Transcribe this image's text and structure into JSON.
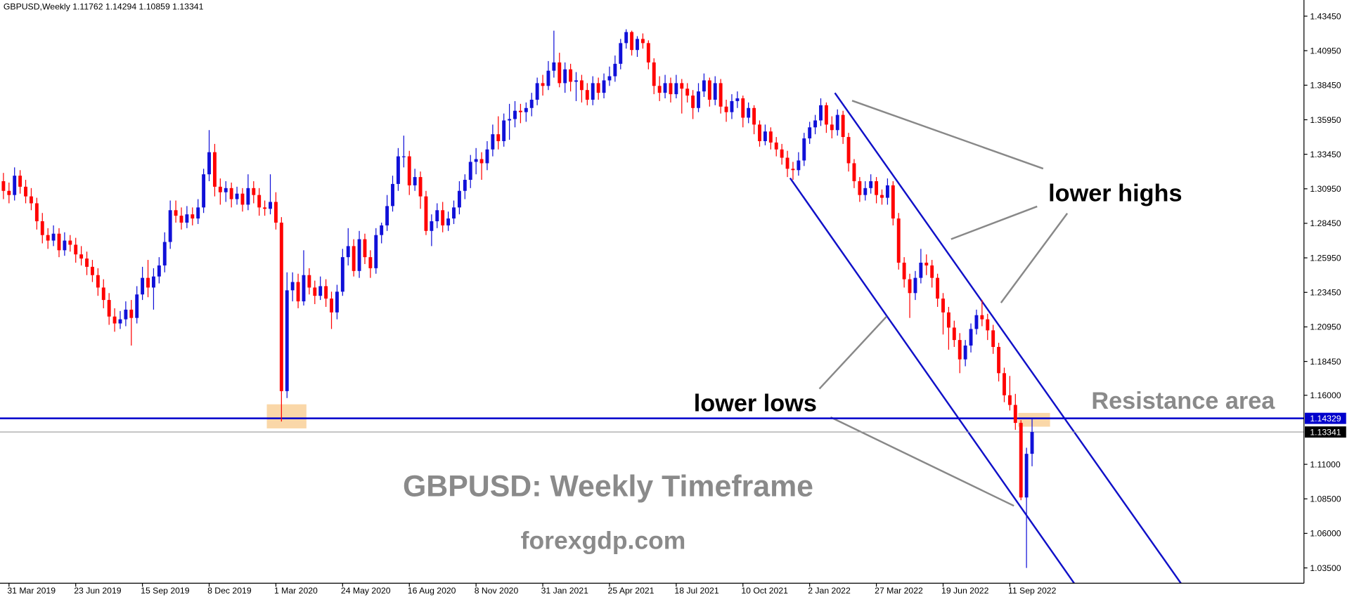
{
  "chart_data": {
    "type": "candlestick",
    "header": "GBPUSD,Weekly  1.11762 1.14294 1.10859 1.13341",
    "up_color": "#1010d8",
    "down_color": "#ff0000",
    "ylim": [
      1.0239,
      1.4462
    ],
    "yticks": [
      {
        "value": 1.4345,
        "label": "1.43450"
      },
      {
        "value": 1.4095,
        "label": "1.40950"
      },
      {
        "value": 1.3845,
        "label": "1.38450"
      },
      {
        "value": 1.3595,
        "label": "1.35950"
      },
      {
        "value": 1.3345,
        "label": "1.33450"
      },
      {
        "value": 1.3095,
        "label": "1.30950"
      },
      {
        "value": 1.2845,
        "label": "1.28450"
      },
      {
        "value": 1.2595,
        "label": "1.25950"
      },
      {
        "value": 1.2345,
        "label": "1.23450"
      },
      {
        "value": 1.2095,
        "label": "1.20950"
      },
      {
        "value": 1.1845,
        "label": "1.18450"
      },
      {
        "value": 1.16,
        "label": "1.16000"
      },
      {
        "value": 1.11,
        "label": "1.11000"
      },
      {
        "value": 1.085,
        "label": "1.08500"
      },
      {
        "value": 1.06,
        "label": "1.06000"
      },
      {
        "value": 1.035,
        "label": "1.03500"
      }
    ],
    "xticks": [
      {
        "value": 1,
        "label": "31 Mar 2019"
      },
      {
        "value": 13,
        "label": "23 Jun 2019"
      },
      {
        "value": 25,
        "label": "15 Sep 2019"
      },
      {
        "value": 37,
        "label": "8 Dec 2019"
      },
      {
        "value": 49,
        "label": "1 Mar 2020"
      },
      {
        "value": 61,
        "label": "24 May 2020"
      },
      {
        "value": 73,
        "label": "16 Aug 2020"
      },
      {
        "value": 85,
        "label": "8 Nov 2020"
      },
      {
        "value": 97,
        "label": "31 Jan 2021"
      },
      {
        "value": 109,
        "label": "25 Apr 2021"
      },
      {
        "value": 121,
        "label": "18 Jul 2021"
      },
      {
        "value": 133,
        "label": "10 Oct 2021"
      },
      {
        "value": 145,
        "label": "2 Jan 2022"
      },
      {
        "value": 157,
        "label": "27 Mar 2022"
      },
      {
        "value": 169,
        "label": "19 Jun 2022"
      },
      {
        "value": 181,
        "label": "11 Sep 2022"
      }
    ],
    "levels": [
      {
        "value": 1.14329,
        "label": "1.14329",
        "color": "#0000cc",
        "box": "#0000cc"
      },
      {
        "value": 1.13341,
        "label": "1.13341",
        "color": "#999999",
        "box": "#000000"
      }
    ],
    "annotations": [
      "lower highs",
      "lower lows",
      "Resistance area",
      "GBPUSD: Weekly Timeframe",
      "forexgdp.com"
    ],
    "candles": [
      [
        1.315,
        1.321,
        1.302,
        1.308
      ],
      [
        1.308,
        1.314,
        1.299,
        1.305
      ],
      [
        1.305,
        1.325,
        1.301,
        1.319
      ],
      [
        1.319,
        1.323,
        1.306,
        1.311
      ],
      [
        1.311,
        1.316,
        1.299,
        1.304
      ],
      [
        1.304,
        1.31,
        1.294,
        1.299
      ],
      [
        1.299,
        1.303,
        1.28,
        1.286
      ],
      [
        1.286,
        1.292,
        1.27,
        1.276
      ],
      [
        1.276,
        1.281,
        1.266,
        1.272
      ],
      [
        1.272,
        1.283,
        1.268,
        1.277
      ],
      [
        1.277,
        1.281,
        1.26,
        1.265
      ],
      [
        1.265,
        1.278,
        1.261,
        1.272
      ],
      [
        1.272,
        1.276,
        1.264,
        1.269
      ],
      [
        1.269,
        1.274,
        1.256,
        1.262
      ],
      [
        1.262,
        1.268,
        1.254,
        1.259
      ],
      [
        1.259,
        1.264,
        1.247,
        1.253
      ],
      [
        1.253,
        1.258,
        1.242,
        1.247
      ],
      [
        1.247,
        1.252,
        1.232,
        1.238
      ],
      [
        1.238,
        1.244,
        1.223,
        1.229
      ],
      [
        1.229,
        1.234,
        1.211,
        1.217
      ],
      [
        1.217,
        1.223,
        1.206,
        1.212
      ],
      [
        1.212,
        1.221,
        1.208,
        1.215
      ],
      [
        1.215,
        1.228,
        1.21,
        1.222
      ],
      [
        1.222,
        1.229,
        1.196,
        1.216
      ],
      [
        1.216,
        1.239,
        1.212,
        1.233
      ],
      [
        1.233,
        1.253,
        1.229,
        1.245
      ],
      [
        1.245,
        1.258,
        1.231,
        1.238
      ],
      [
        1.238,
        1.252,
        1.222,
        1.246
      ],
      [
        1.246,
        1.26,
        1.241,
        1.254
      ],
      [
        1.254,
        1.278,
        1.249,
        1.271
      ],
      [
        1.271,
        1.301,
        1.266,
        1.294
      ],
      [
        1.294,
        1.301,
        1.285,
        1.29
      ],
      [
        1.29,
        1.296,
        1.28,
        1.285
      ],
      [
        1.285,
        1.297,
        1.281,
        1.291
      ],
      [
        1.291,
        1.296,
        1.283,
        1.288
      ],
      [
        1.288,
        1.302,
        1.284,
        1.296
      ],
      [
        1.296,
        1.324,
        1.292,
        1.32
      ],
      [
        1.32,
        1.352,
        1.315,
        1.336
      ],
      [
        1.336,
        1.342,
        1.304,
        1.311
      ],
      [
        1.311,
        1.317,
        1.298,
        1.307
      ],
      [
        1.307,
        1.315,
        1.3,
        1.31
      ],
      [
        1.31,
        1.314,
        1.296,
        1.302
      ],
      [
        1.302,
        1.311,
        1.298,
        1.306
      ],
      [
        1.306,
        1.31,
        1.293,
        1.298
      ],
      [
        1.298,
        1.32,
        1.294,
        1.31
      ],
      [
        1.31,
        1.315,
        1.299,
        1.305
      ],
      [
        1.305,
        1.31,
        1.29,
        1.296
      ],
      [
        1.296,
        1.301,
        1.29,
        1.295
      ],
      [
        1.295,
        1.32,
        1.291,
        1.3
      ],
      [
        1.3,
        1.307,
        1.28,
        1.285
      ],
      [
        1.285,
        1.289,
        1.141,
        1.163
      ],
      [
        1.163,
        1.249,
        1.158,
        1.236
      ],
      [
        1.236,
        1.249,
        1.228,
        1.242
      ],
      [
        1.242,
        1.248,
        1.223,
        1.228
      ],
      [
        1.228,
        1.265,
        1.225,
        1.247
      ],
      [
        1.247,
        1.252,
        1.233,
        1.238
      ],
      [
        1.238,
        1.243,
        1.226,
        1.232
      ],
      [
        1.232,
        1.246,
        1.229,
        1.239
      ],
      [
        1.239,
        1.244,
        1.224,
        1.23
      ],
      [
        1.23,
        1.235,
        1.208,
        1.22
      ],
      [
        1.22,
        1.24,
        1.215,
        1.235
      ],
      [
        1.235,
        1.266,
        1.232,
        1.26
      ],
      [
        1.26,
        1.281,
        1.254,
        1.268
      ],
      [
        1.268,
        1.273,
        1.246,
        1.25
      ],
      [
        1.25,
        1.279,
        1.245,
        1.273
      ],
      [
        1.273,
        1.277,
        1.255,
        1.26
      ],
      [
        1.26,
        1.265,
        1.245,
        1.252
      ],
      [
        1.252,
        1.281,
        1.248,
        1.276
      ],
      [
        1.276,
        1.285,
        1.27,
        1.283
      ],
      [
        1.283,
        1.305,
        1.279,
        1.297
      ],
      [
        1.297,
        1.319,
        1.293,
        1.313
      ],
      [
        1.313,
        1.339,
        1.308,
        1.333
      ],
      [
        1.333,
        1.348,
        1.325,
        1.333
      ],
      [
        1.333,
        1.337,
        1.305,
        1.312
      ],
      [
        1.312,
        1.324,
        1.308,
        1.318
      ],
      [
        1.318,
        1.322,
        1.295,
        1.304
      ],
      [
        1.304,
        1.308,
        1.276,
        1.279
      ],
      [
        1.279,
        1.291,
        1.268,
        1.286
      ],
      [
        1.286,
        1.299,
        1.281,
        1.294
      ],
      [
        1.294,
        1.3,
        1.278,
        1.283
      ],
      [
        1.283,
        1.293,
        1.279,
        1.288
      ],
      [
        1.288,
        1.301,
        1.284,
        1.296
      ],
      [
        1.296,
        1.315,
        1.291,
        1.308
      ],
      [
        1.308,
        1.32,
        1.302,
        1.316
      ],
      [
        1.316,
        1.334,
        1.31,
        1.329
      ],
      [
        1.329,
        1.339,
        1.32,
        1.331
      ],
      [
        1.331,
        1.336,
        1.316,
        1.328
      ],
      [
        1.328,
        1.344,
        1.323,
        1.338
      ],
      [
        1.338,
        1.356,
        1.333,
        1.349
      ],
      [
        1.349,
        1.362,
        1.338,
        1.344
      ],
      [
        1.344,
        1.364,
        1.34,
        1.359
      ],
      [
        1.359,
        1.371,
        1.345,
        1.36
      ],
      [
        1.36,
        1.373,
        1.354,
        1.366
      ],
      [
        1.366,
        1.371,
        1.357,
        1.365
      ],
      [
        1.365,
        1.372,
        1.358,
        1.368
      ],
      [
        1.368,
        1.379,
        1.362,
        1.374
      ],
      [
        1.374,
        1.39,
        1.37,
        1.386
      ],
      [
        1.386,
        1.392,
        1.377,
        1.384
      ],
      [
        1.384,
        1.402,
        1.381,
        1.395
      ],
      [
        1.395,
        1.424,
        1.39,
        1.401
      ],
      [
        1.401,
        1.408,
        1.383,
        1.386
      ],
      [
        1.386,
        1.401,
        1.379,
        1.396
      ],
      [
        1.396,
        1.4,
        1.38,
        1.387
      ],
      [
        1.387,
        1.394,
        1.373,
        1.388
      ],
      [
        1.388,
        1.392,
        1.372,
        1.381
      ],
      [
        1.381,
        1.386,
        1.37,
        1.374
      ],
      [
        1.374,
        1.391,
        1.37,
        1.386
      ],
      [
        1.386,
        1.39,
        1.374,
        1.379
      ],
      [
        1.379,
        1.393,
        1.375,
        1.388
      ],
      [
        1.388,
        1.398,
        1.384,
        1.391
      ],
      [
        1.391,
        1.406,
        1.387,
        1.4
      ],
      [
        1.4,
        1.418,
        1.396,
        1.415
      ],
      [
        1.415,
        1.425,
        1.411,
        1.423
      ],
      [
        1.423,
        1.424,
        1.406,
        1.41
      ],
      [
        1.41,
        1.42,
        1.405,
        1.418
      ],
      [
        1.418,
        1.422,
        1.411,
        1.415
      ],
      [
        1.415,
        1.417,
        1.396,
        1.401
      ],
      [
        1.401,
        1.404,
        1.378,
        1.384
      ],
      [
        1.384,
        1.391,
        1.373,
        1.379
      ],
      [
        1.379,
        1.392,
        1.375,
        1.386
      ],
      [
        1.386,
        1.39,
        1.372,
        1.378
      ],
      [
        1.378,
        1.392,
        1.375,
        1.386
      ],
      [
        1.386,
        1.389,
        1.364,
        1.382
      ],
      [
        1.382,
        1.386,
        1.372,
        1.377
      ],
      [
        1.377,
        1.381,
        1.36,
        1.368
      ],
      [
        1.368,
        1.386,
        1.365,
        1.38
      ],
      [
        1.38,
        1.393,
        1.376,
        1.388
      ],
      [
        1.388,
        1.39,
        1.369,
        1.374
      ],
      [
        1.374,
        1.391,
        1.37,
        1.386
      ],
      [
        1.386,
        1.389,
        1.364,
        1.369
      ],
      [
        1.369,
        1.374,
        1.358,
        1.365
      ],
      [
        1.365,
        1.378,
        1.36,
        1.373
      ],
      [
        1.373,
        1.38,
        1.368,
        1.375
      ],
      [
        1.375,
        1.377,
        1.354,
        1.361
      ],
      [
        1.361,
        1.372,
        1.357,
        1.368
      ],
      [
        1.368,
        1.37,
        1.349,
        1.356
      ],
      [
        1.356,
        1.359,
        1.34,
        1.344
      ],
      [
        1.344,
        1.356,
        1.341,
        1.351
      ],
      [
        1.351,
        1.354,
        1.338,
        1.343
      ],
      [
        1.343,
        1.347,
        1.333,
        1.338
      ],
      [
        1.338,
        1.342,
        1.327,
        1.332
      ],
      [
        1.332,
        1.337,
        1.318,
        1.324
      ],
      [
        1.324,
        1.329,
        1.316,
        1.323
      ],
      [
        1.323,
        1.336,
        1.319,
        1.33
      ],
      [
        1.33,
        1.35,
        1.326,
        1.346
      ],
      [
        1.346,
        1.358,
        1.342,
        1.354
      ],
      [
        1.354,
        1.363,
        1.349,
        1.359
      ],
      [
        1.359,
        1.375,
        1.355,
        1.37
      ],
      [
        1.37,
        1.372,
        1.35,
        1.356
      ],
      [
        1.356,
        1.362,
        1.346,
        1.352
      ],
      [
        1.352,
        1.367,
        1.348,
        1.363
      ],
      [
        1.363,
        1.366,
        1.342,
        1.347
      ],
      [
        1.347,
        1.35,
        1.322,
        1.328
      ],
      [
        1.328,
        1.331,
        1.31,
        1.315
      ],
      [
        1.315,
        1.318,
        1.3,
        1.305
      ],
      [
        1.305,
        1.315,
        1.301,
        1.31
      ],
      [
        1.31,
        1.32,
        1.306,
        1.315
      ],
      [
        1.315,
        1.318,
        1.299,
        1.305
      ],
      [
        1.305,
        1.309,
        1.298,
        1.303
      ],
      [
        1.303,
        1.317,
        1.298,
        1.312
      ],
      [
        1.312,
        1.315,
        1.283,
        1.288
      ],
      [
        1.288,
        1.292,
        1.251,
        1.256
      ],
      [
        1.256,
        1.26,
        1.238,
        1.244
      ],
      [
        1.244,
        1.248,
        1.216,
        1.234
      ],
      [
        1.234,
        1.25,
        1.229,
        1.245
      ],
      [
        1.245,
        1.266,
        1.241,
        1.256
      ],
      [
        1.256,
        1.262,
        1.247,
        1.254
      ],
      [
        1.254,
        1.258,
        1.238,
        1.245
      ],
      [
        1.245,
        1.248,
        1.224,
        1.23
      ],
      [
        1.23,
        1.234,
        1.204,
        1.22
      ],
      [
        1.22,
        1.224,
        1.193,
        1.209
      ],
      [
        1.209,
        1.214,
        1.195,
        1.2
      ],
      [
        1.2,
        1.205,
        1.176,
        1.186
      ],
      [
        1.186,
        1.2,
        1.181,
        1.196
      ],
      [
        1.196,
        1.212,
        1.191,
        1.208
      ],
      [
        1.208,
        1.222,
        1.204,
        1.218
      ],
      [
        1.218,
        1.229,
        1.21,
        1.215
      ],
      [
        1.215,
        1.219,
        1.2,
        1.207
      ],
      [
        1.207,
        1.211,
        1.19,
        1.195
      ],
      [
        1.195,
        1.198,
        1.17,
        1.176
      ],
      [
        1.176,
        1.18,
        1.155,
        1.16
      ],
      [
        1.16,
        1.174,
        1.149,
        1.153
      ],
      [
        1.153,
        1.161,
        1.135,
        1.14
      ],
      [
        1.14,
        1.142,
        1.084,
        1.086
      ],
      [
        1.086,
        1.122,
        1.035,
        1.1176
      ],
      [
        1.11762,
        1.14294,
        1.10859,
        1.13341
      ]
    ]
  }
}
